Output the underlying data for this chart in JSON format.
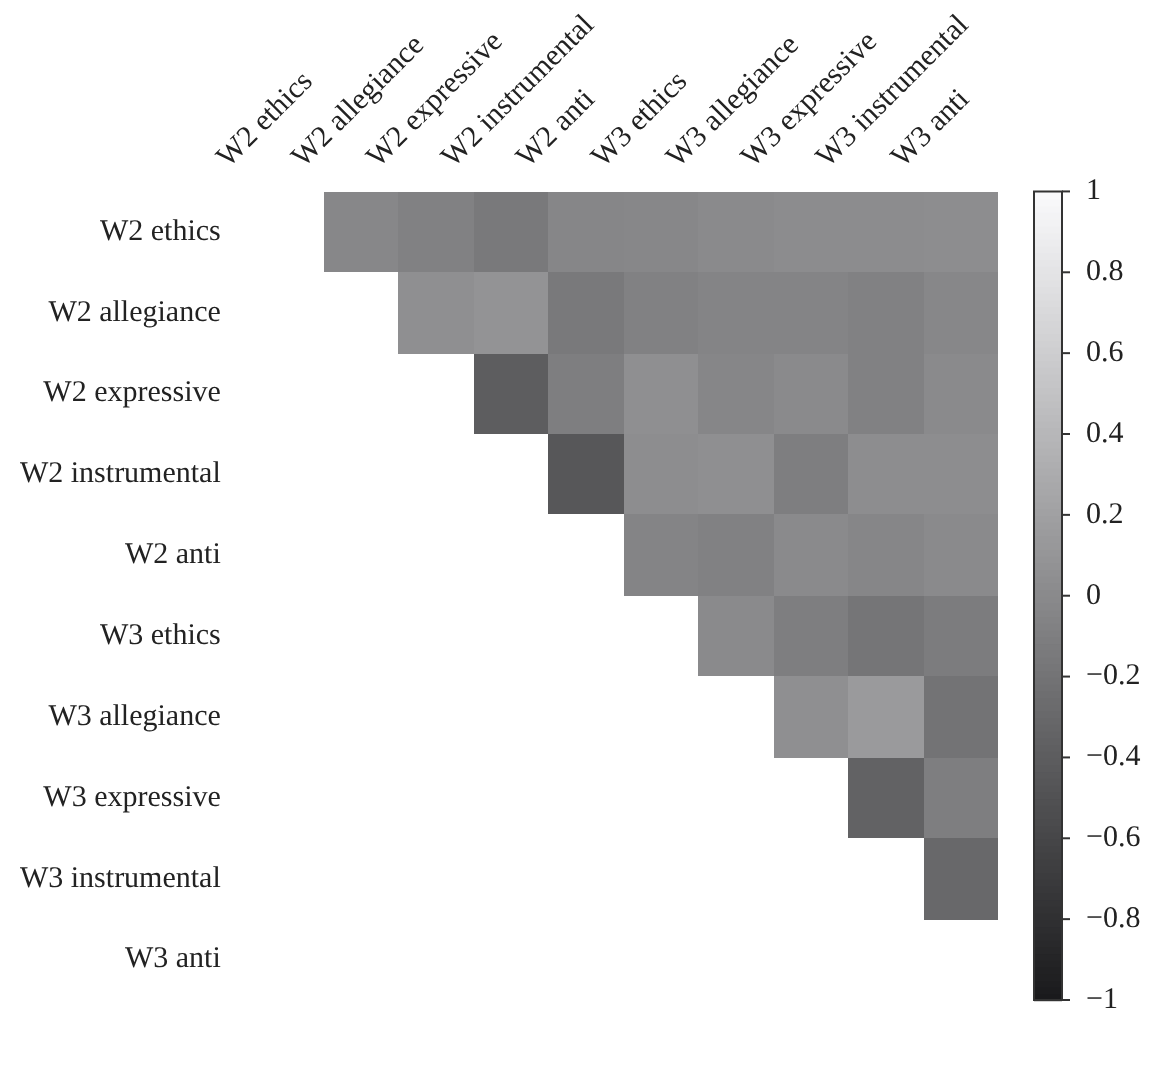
{
  "chart_data": {
    "type": "heatmap",
    "categories": [
      "W2 ethics",
      "W2 allegiance",
      "W2 expressive",
      "W2 instrumental",
      "W2 anti",
      "W3 ethics",
      "W3 allegiance",
      "W3 expressive",
      "W3 instrumental",
      "W3 anti"
    ],
    "y_categories": [
      "W2 ethics",
      "W2 allegiance",
      "W2 expressive",
      "W2 instrumental",
      "W2 anti",
      "W3 ethics",
      "W3 allegiance",
      "W3 expressive",
      "W3 instrumental",
      "W3 anti"
    ],
    "cells": [
      [
        null,
        -0.02,
        -0.08,
        -0.15,
        -0.03,
        -0.02,
        0.0,
        0.02,
        0.02,
        0.03
      ],
      [
        null,
        null,
        0.05,
        0.08,
        -0.15,
        -0.08,
        -0.05,
        -0.05,
        -0.08,
        -0.02
      ],
      [
        null,
        null,
        null,
        -0.4,
        -0.1,
        0.05,
        -0.03,
        0.0,
        -0.08,
        0.0
      ],
      [
        null,
        null,
        null,
        null,
        -0.45,
        0.03,
        0.05,
        -0.1,
        0.03,
        0.03
      ],
      [
        null,
        null,
        null,
        null,
        null,
        -0.05,
        -0.08,
        0.0,
        -0.03,
        0.0
      ],
      [
        null,
        null,
        null,
        null,
        null,
        null,
        0.0,
        -0.1,
        -0.18,
        -0.12
      ],
      [
        null,
        null,
        null,
        null,
        null,
        null,
        null,
        0.05,
        0.15,
        -0.2
      ],
      [
        null,
        null,
        null,
        null,
        null,
        null,
        null,
        null,
        -0.35,
        -0.1
      ],
      [
        null,
        null,
        null,
        null,
        null,
        null,
        null,
        null,
        null,
        -0.3
      ],
      [
        null,
        null,
        null,
        null,
        null,
        null,
        null,
        null,
        null,
        null
      ]
    ],
    "clim": [
      -1,
      1
    ],
    "cticks": [
      {
        "value": -1,
        "label": "−1"
      },
      {
        "value": -0.8,
        "label": "−0.8"
      },
      {
        "value": -0.6,
        "label": "−0.6"
      },
      {
        "value": -0.4,
        "label": "−0.4"
      },
      {
        "value": -0.2,
        "label": "−0.2"
      },
      {
        "value": 0,
        "label": "0"
      },
      {
        "value": 0.2,
        "label": "0.2"
      },
      {
        "value": 0.4,
        "label": "0.4"
      },
      {
        "value": 0.6,
        "label": "0.6"
      },
      {
        "value": 0.8,
        "label": "0.8"
      },
      {
        "value": 1,
        "label": "1"
      }
    ]
  }
}
